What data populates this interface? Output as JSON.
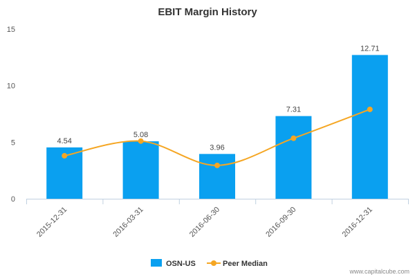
{
  "chart_data": {
    "type": "bar",
    "title": "EBIT Margin History",
    "xlabel": "",
    "ylabel": "",
    "categories": [
      "2015-12-31",
      "2016-03-31",
      "2016-06-30",
      "2016-09-30",
      "2016-12-31"
    ],
    "ylim": [
      0,
      15
    ],
    "yticks": [
      0,
      5,
      10,
      15
    ],
    "series": [
      {
        "name": "OSN-US",
        "type": "bar",
        "color": "#0aa0f0",
        "values": [
          4.54,
          5.08,
          3.96,
          7.31,
          12.71
        ],
        "data_labels": [
          "4.54",
          "5.08",
          "3.96",
          "7.31",
          "12.71"
        ]
      },
      {
        "name": "Peer Median",
        "type": "line",
        "color": "#f5a623",
        "values": [
          3.8,
          5.1,
          2.95,
          5.35,
          7.9
        ]
      }
    ],
    "grid": false,
    "legend_position": "bottom-center"
  },
  "credit": "www.capitalcube.com"
}
